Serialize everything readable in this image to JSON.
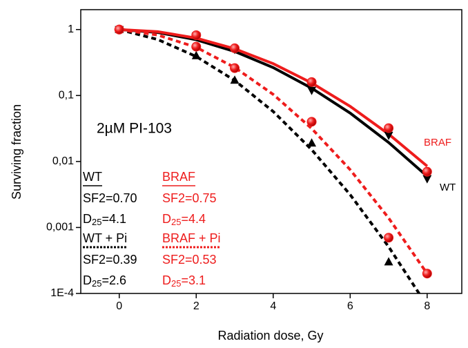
{
  "chart_data": {
    "type": "line",
    "xlabel": "Radiation dose, Gy",
    "ylabel": "Surviving fraction",
    "annotation": "2µM PI-103",
    "xlim": [
      -1,
      8.9
    ],
    "xticks": [
      0,
      2,
      4,
      6,
      8
    ],
    "ylim": [
      0.0001,
      2
    ],
    "log_y": true,
    "yticks": [
      1,
      {
        "value": 0.1,
        "label": "0,1"
      },
      {
        "value": 0.01,
        "label": "0,01"
      },
      {
        "value": 0.001,
        "label": "0,001"
      },
      {
        "value": 0.0001,
        "label": "1E-4"
      }
    ],
    "x": [
      0,
      2,
      3,
      5,
      7,
      8
    ],
    "fit_x": [
      0,
      1,
      2,
      3,
      4,
      5,
      6,
      7,
      8
    ],
    "series": [
      {
        "name": "WT",
        "color": "#000000",
        "marker": "triangle-down",
        "dashed": false,
        "values": [
          1,
          0.8,
          0.5,
          0.12,
          0.025,
          0.0055
        ],
        "fit": [
          1,
          0.903,
          0.7,
          0.465,
          0.265,
          0.129,
          0.0541,
          0.0194,
          0.00598
        ],
        "sf2": "SF2=0.70",
        "d25": [
          "D",
          "25",
          "=4.1"
        ]
      },
      {
        "name": "BRAF",
        "color": "#ee1c1c",
        "marker": "circle",
        "dashed": false,
        "values": [
          1,
          0.82,
          0.52,
          0.16,
          0.032,
          0.007
        ],
        "fit": [
          1,
          0.928,
          0.742,
          0.511,
          0.304,
          0.155,
          0.0684,
          0.026,
          0.0085
        ],
        "sf2": "SF2=0.75",
        "d25": [
          "D",
          "25",
          "=4.4"
        ]
      },
      {
        "name": "WT + Pi",
        "color": "#000000",
        "marker": "triangle-up",
        "dashed": true,
        "values": [
          1,
          0.4,
          0.17,
          0.019,
          0.0003,
          null
        ],
        "fit": [
          1,
          0.706,
          0.39,
          0.169,
          0.0572,
          0.0151,
          0.00314,
          0.00051,
          6.5e-05
        ],
        "sf2": "SF2=0.39",
        "d25": [
          "D",
          "25",
          "=2.6"
        ]
      },
      {
        "name": "BRAF + Pi",
        "color": "#ee1c1c",
        "marker": "circle",
        "dashed": true,
        "values": [
          1,
          0.55,
          0.26,
          0.04,
          0.0007,
          0.0002
        ],
        "fit": [
          1,
          0.825,
          0.538,
          0.266,
          0.104,
          0.0316,
          0.0075,
          0.00139,
          0.0002
        ],
        "sf2": "SF2=0.53",
        "d25": [
          "D",
          "25",
          "=3.1"
        ]
      }
    ]
  }
}
